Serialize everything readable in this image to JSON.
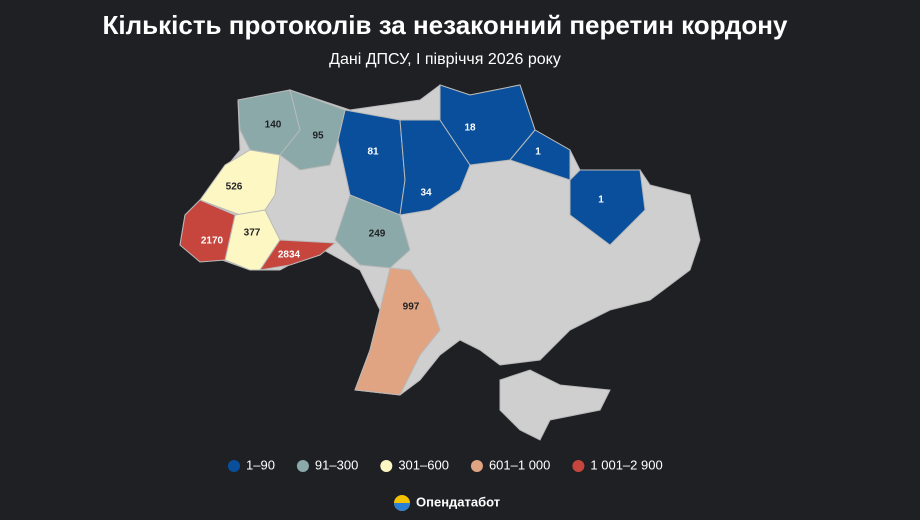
{
  "chart_data": {
    "type": "choropleth",
    "title": "Кількість протоколів за незаконний перетин кордону",
    "subtitle": "Дані ДПСУ, І півріччя 2026 року",
    "series": [
      {
        "name": "1–90",
        "color": "#0a4f9b",
        "values": [
          81,
          34,
          18,
          1,
          1
        ]
      },
      {
        "name": "91–300",
        "color": "#8aa9a8",
        "values": [
          140,
          95,
          249
        ]
      },
      {
        "name": "301–600",
        "color": "#fdf8c3",
        "values": [
          526,
          377
        ]
      },
      {
        "name": "601–1 000",
        "color": "#e0a482",
        "values": [
          997
        ]
      },
      {
        "name": "1 001–2 900",
        "color": "#c6463d",
        "values": [
          2170,
          2834
        ]
      }
    ],
    "source": "Опендатабот"
  }
}
